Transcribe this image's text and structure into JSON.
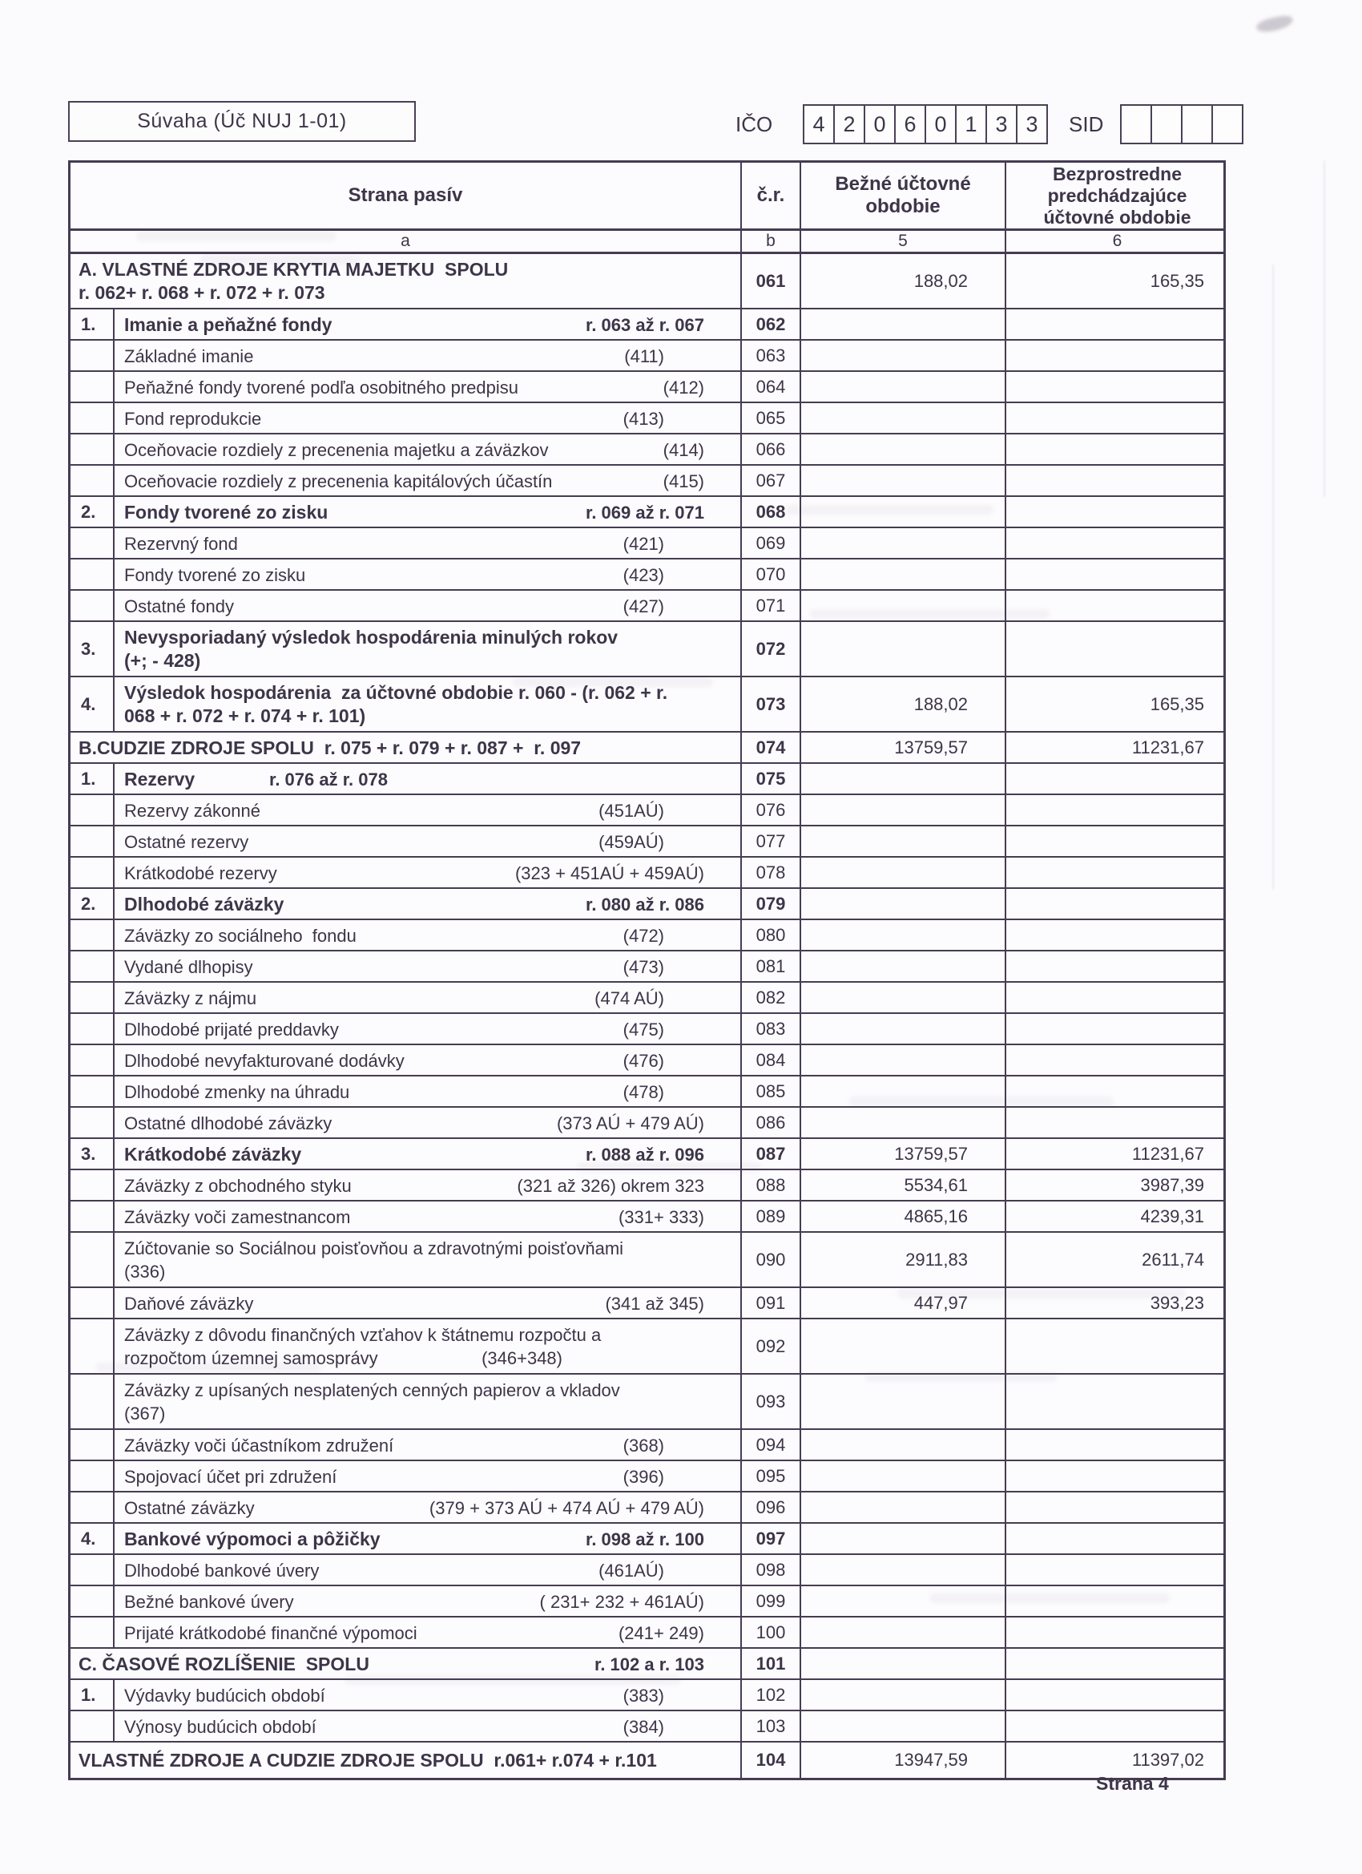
{
  "page": {
    "footer": "Strana 4"
  },
  "header": {
    "form_title": "Súvaha (Úč NUJ 1-01)",
    "ico_label": "IČO",
    "ico_digits": [
      "4",
      "2",
      "0",
      "6",
      "0",
      "1",
      "3",
      "3"
    ],
    "sid_label": "SID"
  },
  "table": {
    "columns": {
      "name": "Strana pasív",
      "cr": "č.r.",
      "current": "Bežné účtovné obdobie",
      "previous": "Bezprostredne predchádzajúce účtovné obdobie"
    },
    "subheader": {
      "a": "a",
      "b": "b",
      "c5": "5",
      "c6": "6"
    },
    "rows": [
      {
        "kind": "section",
        "bold": true,
        "l1": "A. VLASTNÉ ZDROJE KRYTIA MAJETKU  SPOLU",
        "l2": "r. 062+ r. 068 + r. 072 + r. 073",
        "cr": "061",
        "v5": "188,02",
        "v6": "165,35"
      },
      {
        "kind": "item",
        "num": "1.",
        "bold": true,
        "l1": "Imanie a peňažné fondy",
        "r1": "r. 063 až r. 067",
        "cs": "l",
        "cr": "062",
        "v5": "",
        "v6": ""
      },
      {
        "kind": "item",
        "num": "",
        "l1": "Základné imanie",
        "r1": "(411)",
        "cs": "s",
        "cr": "063",
        "v5": "",
        "v6": ""
      },
      {
        "kind": "item",
        "num": "",
        "l1": "Peňažné fondy tvorené podľa osobitného predpisu",
        "r1": "(412)",
        "cs": "l",
        "cr": "064",
        "v5": "",
        "v6": ""
      },
      {
        "kind": "item",
        "num": "",
        "l1": "Fond reprodukcie",
        "r1": "(413)",
        "cs": "s",
        "cr": "065",
        "v5": "",
        "v6": ""
      },
      {
        "kind": "item",
        "num": "",
        "l1": "Oceňovacie rozdiely z precenenia majetku a záväzkov",
        "r1": "(414)",
        "cs": "l",
        "cr": "066",
        "v5": "",
        "v6": ""
      },
      {
        "kind": "item",
        "num": "",
        "l1": "Oceňovacie rozdiely z precenenia kapitálových účastín",
        "r1": "(415)",
        "cs": "l",
        "cr": "067",
        "v5": "",
        "v6": ""
      },
      {
        "kind": "item",
        "num": "2.",
        "bold": true,
        "l1": "Fondy tvorené zo zisku",
        "r1": "r. 069 až r. 071",
        "cs": "l",
        "cr": "068",
        "v5": "",
        "v6": ""
      },
      {
        "kind": "item",
        "num": "",
        "l1": "Rezervný fond",
        "r1": "(421)",
        "cs": "s",
        "cr": "069",
        "v5": "",
        "v6": ""
      },
      {
        "kind": "item",
        "num": "",
        "l1": "Fondy tvorené zo zisku",
        "r1": "(423)",
        "cs": "s",
        "cr": "070",
        "v5": "",
        "v6": ""
      },
      {
        "kind": "item",
        "num": "",
        "l1": "Ostatné fondy",
        "r1": "(427)",
        "cs": "s",
        "cr": "071",
        "v5": "",
        "v6": ""
      },
      {
        "kind": "item",
        "num": "3.",
        "bold": true,
        "l1": "Nevysporiadaný výsledok hospodárenia minulých rokov",
        "l2": "(+; - 428)",
        "cr": "072",
        "v5": "",
        "v6": ""
      },
      {
        "kind": "item",
        "num": "4.",
        "bold": true,
        "l1": "Výsledok hospodárenia  za účtovné obdobie r. 060 - (r. 062 + r.",
        "l2": "068 + r. 072 + r. 074 + r. 101)",
        "cr": "073",
        "v5": "188,02",
        "v6": "165,35"
      },
      {
        "kind": "section",
        "bold": true,
        "l1": "B.CUDZIE ZDROJE SPOLU  r. 075 + r. 079 + r. 087 +  r. 097",
        "cr": "074",
        "v5": "13759,57",
        "v6": "11231,67"
      },
      {
        "kind": "item",
        "num": "1.",
        "bold": true,
        "l1": "Rezervy",
        "r1": "r. 076 až r. 078",
        "cs": "x",
        "cr": "075",
        "v5": "",
        "v6": ""
      },
      {
        "kind": "item",
        "num": "",
        "l1": "Rezervy zákonné",
        "r1": "(451AÚ)",
        "cs": "s",
        "cr": "076",
        "v5": "",
        "v6": ""
      },
      {
        "kind": "item",
        "num": "",
        "l1": "Ostatné rezervy",
        "r1": "(459AÚ)",
        "cs": "s",
        "cr": "077",
        "v5": "",
        "v6": ""
      },
      {
        "kind": "item",
        "num": "",
        "l1": "Krátkodobé rezervy",
        "r1": "(323 + 451AÚ + 459AÚ)",
        "cs": "l",
        "cr": "078",
        "v5": "",
        "v6": ""
      },
      {
        "kind": "item",
        "num": "2.",
        "bold": true,
        "l1": "Dlhodobé záväzky",
        "r1": "r. 080 až r. 086",
        "cs": "l",
        "cr": "079",
        "v5": "",
        "v6": ""
      },
      {
        "kind": "item",
        "num": "",
        "l1": "Záväzky zo sociálneho  fondu",
        "r1": "(472)",
        "cs": "s",
        "cr": "080",
        "v5": "",
        "v6": ""
      },
      {
        "kind": "item",
        "num": "",
        "l1": "Vydané dlhopisy",
        "r1": "(473)",
        "cs": "s",
        "cr": "081",
        "v5": "",
        "v6": ""
      },
      {
        "kind": "item",
        "num": "",
        "l1": "Záväzky z nájmu",
        "r1": "(474 AÚ)",
        "cs": "s",
        "cr": "082",
        "v5": "",
        "v6": ""
      },
      {
        "kind": "item",
        "num": "",
        "l1": "Dlhodobé prijaté preddavky",
        "r1": "(475)",
        "cs": "s",
        "cr": "083",
        "v5": "",
        "v6": ""
      },
      {
        "kind": "item",
        "num": "",
        "l1": "Dlhodobé nevyfakturované dodávky",
        "r1": "(476)",
        "cs": "s",
        "cr": "084",
        "v5": "",
        "v6": ""
      },
      {
        "kind": "item",
        "num": "",
        "l1": "Dlhodobé zmenky na úhradu",
        "r1": "(478)",
        "cs": "s",
        "cr": "085",
        "v5": "",
        "v6": ""
      },
      {
        "kind": "item",
        "num": "",
        "l1": "Ostatné dlhodobé záväzky",
        "r1": "(373 AÚ + 479 AÚ)",
        "cs": "l",
        "cr": "086",
        "v5": "",
        "v6": ""
      },
      {
        "kind": "item",
        "num": "3.",
        "bold": true,
        "l1": "Krátkodobé záväzky",
        "r1": "r. 088 až r. 096",
        "cs": "l",
        "cr": "087",
        "v5": "13759,57",
        "v6": "11231,67"
      },
      {
        "kind": "item",
        "num": "",
        "l1": "Záväzky z obchodného styku",
        "r1": "(321 až 326) okrem 323",
        "cs": "l",
        "cr": "088",
        "v5": "5534,61",
        "v6": "3987,39"
      },
      {
        "kind": "item",
        "num": "",
        "l1": "Záväzky voči zamestnancom",
        "r1": "(331+ 333)",
        "cs": "l",
        "cr": "089",
        "v5": "4865,16",
        "v6": "4239,31"
      },
      {
        "kind": "item",
        "num": "",
        "l1": "Zúčtovanie so Sociálnou poisťovňou a zdravotnými poisťovňami",
        "l2": "(336)",
        "cr": "090",
        "v5": "2911,83",
        "v6": "2611,74"
      },
      {
        "kind": "item",
        "num": "",
        "l1": "Daňové záväzky",
        "r1": "(341 až 345)",
        "cs": "l",
        "cr": "091",
        "v5": "447,97",
        "v6": "393,23"
      },
      {
        "kind": "item",
        "num": "",
        "l1": "Záväzky z dôvodu finančných vzťahov k štátnemu rozpočtu a",
        "l2": "rozpočtom územnej samosprávy",
        "r2": "(346+348)",
        "cr": "092",
        "v5": "",
        "v6": ""
      },
      {
        "kind": "item",
        "num": "",
        "l1": "Záväzky z upísaných nesplatených cenných papierov a vkladov",
        "l2": "(367)",
        "cr": "093",
        "v5": "",
        "v6": ""
      },
      {
        "kind": "item",
        "num": "",
        "l1": "Záväzky voči účastníkom združení",
        "r1": "(368)",
        "cs": "s",
        "cr": "094",
        "v5": "",
        "v6": ""
      },
      {
        "kind": "item",
        "num": "",
        "l1": "Spojovací účet pri združení",
        "r1": "(396)",
        "cs": "s",
        "cr": "095",
        "v5": "",
        "v6": ""
      },
      {
        "kind": "item",
        "num": "",
        "l1": "Ostatné záväzky",
        "r1": "(379 + 373 AÚ + 474 AÚ + 479 AÚ)",
        "cs": "l",
        "cr": "096",
        "v5": "",
        "v6": ""
      },
      {
        "kind": "item",
        "num": "4.",
        "bold": true,
        "l1": "Bankové výpomoci a pôžičky",
        "r1": "r. 098 až r. 100",
        "cs": "l",
        "cr": "097",
        "v5": "",
        "v6": ""
      },
      {
        "kind": "item",
        "num": "",
        "l1": "Dlhodobé bankové úvery",
        "r1": "(461AÚ)",
        "cs": "s",
        "cr": "098",
        "v5": "",
        "v6": ""
      },
      {
        "kind": "item",
        "num": "",
        "l1": "Bežné bankové úvery",
        "r1": "( 231+ 232 + 461AÚ)",
        "cs": "l",
        "cr": "099",
        "v5": "",
        "v6": ""
      },
      {
        "kind": "item",
        "num": "",
        "l1": "Prijaté krátkodobé finančné výpomoci",
        "r1": "(241+ 249)",
        "cs": "l",
        "cr": "100",
        "v5": "",
        "v6": ""
      },
      {
        "kind": "section",
        "bold": true,
        "l1": "C. ČASOVÉ ROZLÍŠENIE  SPOLU",
        "r1": "r. 102 a r. 103",
        "cs": "l",
        "cr": "101",
        "v5": "",
        "v6": ""
      },
      {
        "kind": "item",
        "num": "1.",
        "bold": false,
        "l1": "Výdavky budúcich období",
        "r1": "(383)",
        "cs": "s",
        "cr": "102",
        "v5": "",
        "v6": ""
      },
      {
        "kind": "item",
        "num": "",
        "l1": "Výnosy budúcich období",
        "r1": "(384)",
        "cs": "s",
        "cr": "103",
        "v5": "",
        "v6": ""
      },
      {
        "kind": "section",
        "bold": true,
        "l1": "VLASTNÉ ZDROJE A CUDZIE ZDROJE SPOLU  r.061+ r.074 + r.101",
        "cr": "104",
        "v5": "13947,59",
        "v6": "11397,02"
      }
    ]
  }
}
